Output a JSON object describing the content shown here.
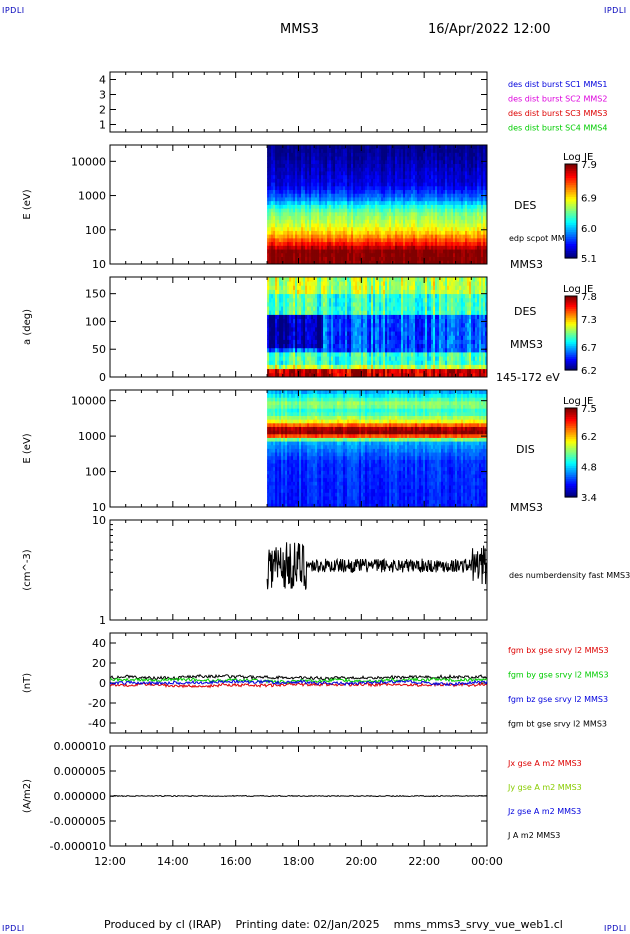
{
  "corners": {
    "tl": "IPDLI",
    "tr": "IPDLI",
    "bl": "IPDLI",
    "br": "IPDLI"
  },
  "header": {
    "spacecraft": "MMS3",
    "datetime": "16/Apr/2022 12:00"
  },
  "footer": {
    "produced": "Produced by cl (IRAP)",
    "printing": "Printing date: 02/Jan/2025",
    "file": "mms_mms3_srvy_vue_web1.cl"
  },
  "colors": {
    "red": "#dd0000",
    "green": "#00cc00",
    "blue": "#0000dd",
    "magenta": "#dd00dd",
    "black": "#000000"
  },
  "chart_data": [
    {
      "type": "table",
      "panel": "burst",
      "yticks": [
        "1",
        "2",
        "3",
        "4"
      ],
      "ylim": [
        0.5,
        4.5
      ],
      "legend": [
        {
          "text": "des dist burst SC1 MMS1",
          "color": "#0000dd"
        },
        {
          "text": "des dist burst SC2 MMS2",
          "color": "#dd00dd"
        },
        {
          "text": "des dist burst SC3 MMS3",
          "color": "#dd0000"
        },
        {
          "text": "des dist burst SC4 MMS4",
          "color": "#00cc00"
        }
      ]
    },
    {
      "type": "heatmap",
      "panel": "des_energy",
      "ylabel": "E (eV)",
      "scale": "log",
      "ylim": [
        10,
        30000
      ],
      "yticks": [
        "10",
        "100",
        "1000",
        "10000"
      ],
      "data_start_hour": 17.0,
      "labels": [
        "DES",
        "MMS3"
      ],
      "overlay": "edp scpot MMS3",
      "colorbar": {
        "title": "Log JE",
        "ticks": [
          "7.9",
          "6.9",
          "6.0",
          "5.1"
        ],
        "range": [
          5.1,
          7.9
        ]
      },
      "energy_profile": [
        [
          10,
          7.9
        ],
        [
          25,
          7.9
        ],
        [
          40,
          7.5
        ],
        [
          80,
          7.0
        ],
        [
          150,
          6.7
        ],
        [
          300,
          6.5
        ],
        [
          500,
          6.2
        ],
        [
          800,
          5.8
        ],
        [
          2000,
          5.4
        ],
        [
          30000,
          5.1
        ]
      ]
    },
    {
      "type": "heatmap",
      "panel": "des_pitch",
      "ylabel": "a (deg)",
      "scale": "linear",
      "ylim": [
        0,
        180
      ],
      "yticks": [
        "0",
        "50",
        "100",
        "150"
      ],
      "data_start_hour": 17.0,
      "labels": [
        "DES",
        "MMS3",
        "145-172 eV"
      ],
      "colorbar": {
        "title": "Log JE",
        "ticks": [
          "7.8",
          "7.3",
          "6.7",
          "6.2"
        ],
        "range": [
          6.2,
          7.8
        ]
      }
    },
    {
      "type": "heatmap",
      "panel": "dis_energy",
      "ylabel": "E (eV)",
      "scale": "log",
      "ylim": [
        10,
        20000
      ],
      "yticks": [
        "10",
        "100",
        "1000",
        "10000"
      ],
      "data_start_hour": 17.0,
      "labels": [
        "DIS",
        "MMS3"
      ],
      "colorbar": {
        "title": "Log JE",
        "ticks": [
          "7.5",
          "6.2",
          "4.8",
          "3.4"
        ],
        "range": [
          3.4,
          7.5
        ]
      },
      "energy_profile": [
        [
          10,
          4.0
        ],
        [
          200,
          4.1
        ],
        [
          700,
          4.6
        ],
        [
          900,
          6.0
        ],
        [
          1200,
          7.5
        ],
        [
          1700,
          7.3
        ],
        [
          2500,
          6.0
        ],
        [
          5000,
          5.0
        ],
        [
          8000,
          5.6
        ],
        [
          20000,
          4.5
        ]
      ]
    },
    {
      "type": "line",
      "panel": "density",
      "ylabel": "(cm^-3)",
      "scale": "log",
      "ylim": [
        1,
        10
      ],
      "yticks": [
        "1",
        "10"
      ],
      "x_range_hours": [
        17.0,
        24.0
      ],
      "level": 3.5,
      "series": [
        {
          "name": "des numberdensity fast MMS3",
          "color": "#000000"
        }
      ]
    },
    {
      "type": "line",
      "panel": "b_field",
      "ylabel": "(nT)",
      "ylim": [
        -50,
        50
      ],
      "yticks": [
        "-40",
        "-20",
        "0",
        "20",
        "40"
      ],
      "series": [
        {
          "name": "fgm bx gse srvy l2 MMS3",
          "color": "#dd0000",
          "level": -2
        },
        {
          "name": "fgm by gse srvy l2 MMS3",
          "color": "#00cc00",
          "level": 3
        },
        {
          "name": "fgm bz gse srvy l2 MMS3",
          "color": "#0000dd",
          "level": 0
        },
        {
          "name": "fgm bt gse srvy l2 MMS3",
          "color": "#000000",
          "level": 6
        }
      ]
    },
    {
      "type": "line",
      "panel": "current",
      "ylabel": "(A/m2)",
      "ylim": [
        -1e-05,
        1e-05
      ],
      "yticks": [
        "-0.000010",
        "-0.000005",
        "0.000000",
        "0.000005",
        "0.000010"
      ],
      "series": [
        {
          "name": "Jx gse A m2 MMS3",
          "color": "#dd0000"
        },
        {
          "name": "Jy gse A m2 MMS3",
          "color": "#88cc00"
        },
        {
          "name": "Jz gse A m2 MMS3",
          "color": "#0000dd"
        },
        {
          "name": "J A m2 MMS3",
          "color": "#000000"
        }
      ],
      "xticks": [
        "12:00",
        "14:00",
        "16:00",
        "18:00",
        "20:00",
        "22:00",
        "00:00"
      ],
      "x_range_hours": [
        12,
        24
      ]
    }
  ]
}
